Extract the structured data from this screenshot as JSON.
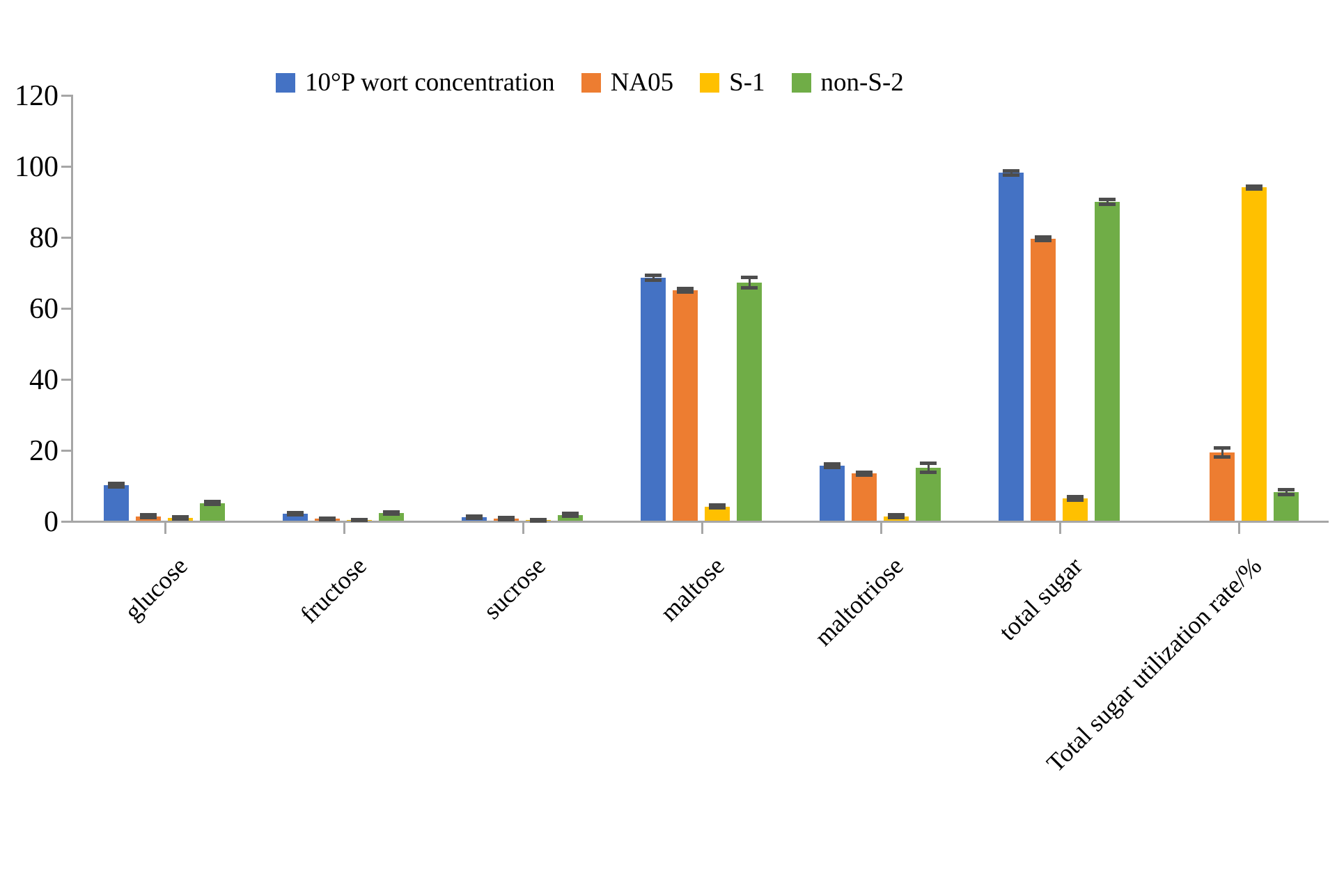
{
  "chart_data": {
    "type": "bar",
    "title": "",
    "xlabel": "",
    "ylabel": "",
    "ylim": [
      0,
      120
    ],
    "yticks": [
      0,
      20,
      40,
      60,
      80,
      100,
      120
    ],
    "grid": false,
    "legend_position": "top",
    "error_bars": true,
    "axis_color": "#A6A6A6",
    "error_bar_color": "#4D4D4D",
    "categories": [
      "glucose",
      "fructose",
      "sucrose",
      "maltose",
      "maltotriose",
      "total sugar",
      "Total sugar utilization rate/%"
    ],
    "series": [
      {
        "name": "10°P wort concentration",
        "color": "#4472C4",
        "values": [
          10.0,
          2.0,
          1.0,
          68.4,
          15.5,
          98.0,
          0
        ],
        "errors": [
          0.4,
          0.3,
          0.3,
          0.7,
          0.5,
          0.6,
          0
        ]
      },
      {
        "name": "NA05",
        "color": "#ED7D31",
        "values": [
          1.2,
          0.5,
          0.6,
          64.9,
          13.3,
          79.4,
          19.2
        ],
        "errors": [
          0.4,
          0.2,
          0.3,
          0.5,
          0.4,
          0.5,
          1.2
        ]
      },
      {
        "name": "S-1",
        "color": "#FFC000",
        "values": [
          0.7,
          0.2,
          0.1,
          4.0,
          1.2,
          6.3,
          93.9
        ],
        "errors": [
          0.3,
          0.15,
          0.1,
          0.4,
          0.4,
          0.5,
          0.4
        ]
      },
      {
        "name": "non-S-2",
        "color": "#70AD47",
        "values": [
          5.0,
          2.1,
          1.6,
          67.0,
          14.9,
          89.8,
          8.0
        ],
        "errors": [
          0.4,
          0.3,
          0.4,
          1.5,
          1.2,
          0.6,
          0.7
        ]
      }
    ]
  }
}
